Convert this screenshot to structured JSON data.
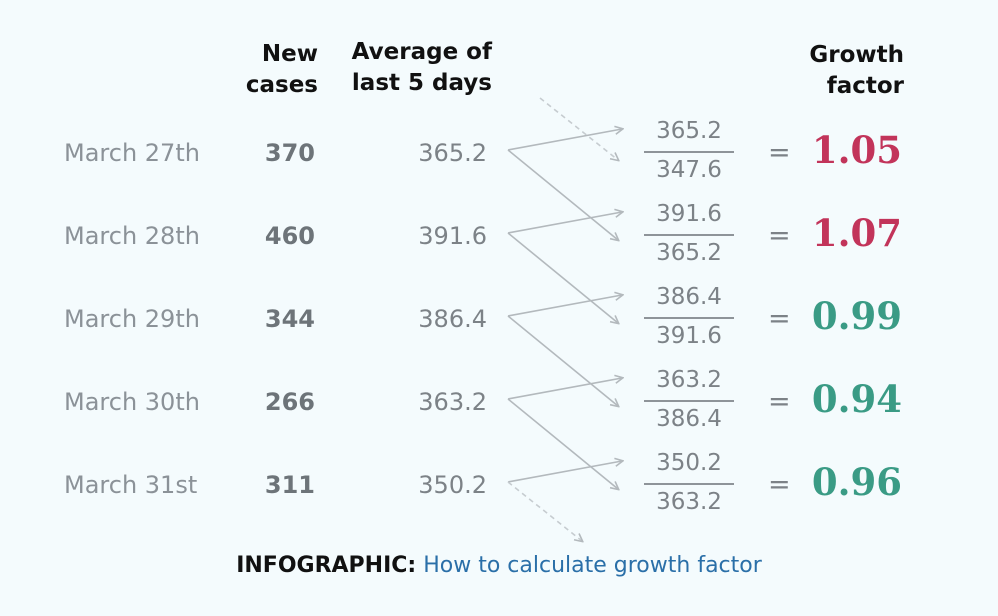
{
  "headers": {
    "new_cases": "New\ncases",
    "average": "Average of\nlast 5 days",
    "growth_factor": "Growth\nfactor"
  },
  "rows": [
    {
      "date": "March 27th",
      "new_cases": "370",
      "average": "365.2",
      "numerator": "365.2",
      "denominator": "347.6",
      "equals": "=",
      "result": "1.05",
      "trend": "up"
    },
    {
      "date": "March 28th",
      "new_cases": "460",
      "average": "391.6",
      "numerator": "391.6",
      "denominator": "365.2",
      "equals": "=",
      "result": "1.07",
      "trend": "up"
    },
    {
      "date": "March 29th",
      "new_cases": "344",
      "average": "386.4",
      "numerator": "386.4",
      "denominator": "391.6",
      "equals": "=",
      "result": "0.99",
      "trend": "down"
    },
    {
      "date": "March 30th",
      "new_cases": "266",
      "average": "363.2",
      "numerator": "363.2",
      "denominator": "386.4",
      "equals": "=",
      "result": "0.94",
      "trend": "down"
    },
    {
      "date": "March 31st",
      "new_cases": "311",
      "average": "350.2",
      "numerator": "350.2",
      "denominator": "363.2",
      "equals": "=",
      "result": "0.96",
      "trend": "down"
    }
  ],
  "colors": {
    "up": "#c2345a",
    "down": "#3a9b85",
    "arrow": "#b3b9bd"
  },
  "caption": {
    "label": "INFOGRAPHIC:",
    "link_text": "How to calculate growth factor"
  }
}
